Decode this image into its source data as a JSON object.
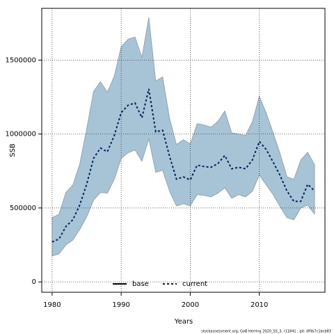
{
  "chart_data": {
    "type": "line",
    "xlabel": "Years",
    "ylabel": "SSB",
    "footnote": "stockassessment.org, GoB Herring 2020_SS_3, r11841 , git: df0b7c1bcb83",
    "x": [
      1980,
      1981,
      1982,
      1983,
      1984,
      1985,
      1986,
      1987,
      1988,
      1989,
      1990,
      1991,
      1992,
      1993,
      1994,
      1995,
      1996,
      1997,
      1998,
      1999,
      2000,
      2001,
      2002,
      2003,
      2004,
      2005,
      2006,
      2007,
      2008,
      2009,
      2010,
      2011,
      2012,
      2013,
      2014,
      2015,
      2016,
      2017,
      2018
    ],
    "series": [
      {
        "name": "base",
        "color": "#000000",
        "values": [
          null,
          null,
          null,
          null,
          null,
          null,
          null,
          null,
          null,
          null,
          null,
          null,
          null,
          null,
          null,
          null,
          null,
          null,
          null,
          null,
          null,
          null,
          null,
          null,
          null,
          null,
          null,
          null,
          null,
          null,
          null,
          null,
          null,
          null,
          null,
          null,
          null,
          null,
          null
        ]
      },
      {
        "name": "current",
        "color": "#00205b",
        "band_color": "#a6c4d6",
        "values": [
          270000,
          290000,
          375000,
          420000,
          520000,
          660000,
          835000,
          905000,
          880000,
          990000,
          1145000,
          1195000,
          1210000,
          1110000,
          1305000,
          1015000,
          1025000,
          850000,
          695000,
          710000,
          690000,
          790000,
          780000,
          775000,
          800000,
          855000,
          765000,
          775000,
          765000,
          825000,
          950000,
          895000,
          810000,
          720000,
          615000,
          545000,
          545000,
          660000,
          615000
        ],
        "upper": [
          434000,
          458000,
          605000,
          655000,
          797000,
          1033000,
          1288000,
          1354000,
          1283000,
          1392000,
          1590000,
          1642000,
          1656000,
          1519000,
          1788000,
          1358000,
          1387000,
          1108000,
          929000,
          962000,
          934000,
          1071000,
          1061000,
          1047000,
          1085000,
          1156000,
          1009000,
          1000000,
          990000,
          1085000,
          1255000,
          1142000,
          1009000,
          868000,
          712000,
          693000,
          825000,
          877000,
          792000
        ],
        "lower": [
          175000,
          189000,
          250000,
          283000,
          354000,
          439000,
          552000,
          604000,
          600000,
          693000,
          835000,
          873000,
          892000,
          816000,
          967000,
          741000,
          755000,
          613000,
          514000,
          528000,
          514000,
          590000,
          585000,
          575000,
          600000,
          637000,
          566000,
          590000,
          575000,
          613000,
          722000,
          656000,
          590000,
          509000,
          434000,
          420000,
          500000,
          519000,
          458000
        ]
      }
    ],
    "xlim": [
      1978.5,
      2019.5
    ],
    "ylim": [
      -70000,
      1850000
    ],
    "xticks": [
      1980,
      1990,
      2000,
      2010
    ],
    "yticks": [
      0,
      500000,
      1000000,
      1500000
    ],
    "grid": true,
    "legend": "bottom"
  }
}
